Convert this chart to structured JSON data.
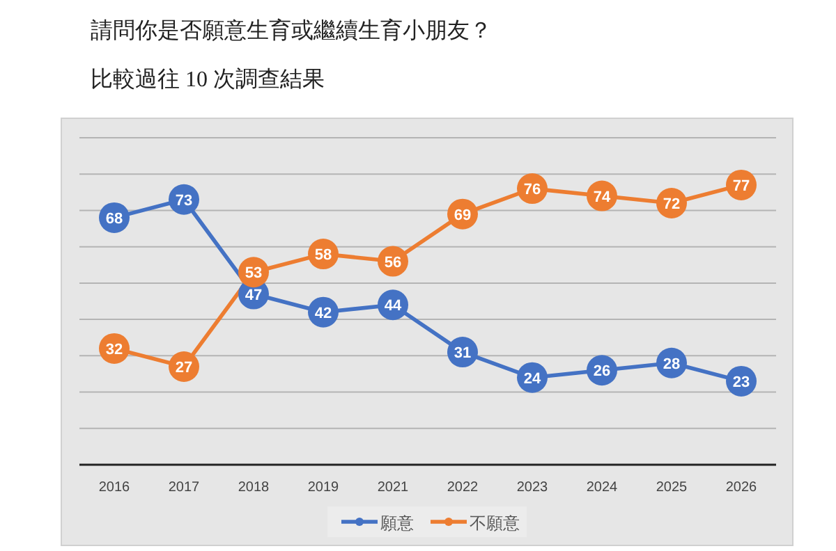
{
  "chart_data": {
    "type": "line",
    "title": "請問你是否願意生育或繼續生育小朋友？",
    "subtitle": "比較過往 10 次調查結果",
    "categories": [
      "2016",
      "2017",
      "2018",
      "2019",
      "2021",
      "2022",
      "2023",
      "2024",
      "2025",
      "2026"
    ],
    "series": [
      {
        "name": "願意",
        "color": "#4472c4",
        "values": [
          68,
          73,
          47,
          42,
          44,
          31,
          24,
          26,
          28,
          23
        ]
      },
      {
        "name": "不願意",
        "color": "#ed7d31",
        "values": [
          32,
          27,
          53,
          58,
          56,
          69,
          76,
          74,
          72,
          77
        ]
      }
    ],
    "ylim": [
      0,
      90
    ],
    "yticks": [
      {
        "value": 0,
        "label": null
      },
      {
        "value": 10,
        "label": null
      },
      {
        "value": 20,
        "label": null
      },
      {
        "value": 30,
        "label": null
      },
      {
        "value": 40,
        "label": null
      },
      {
        "value": 50,
        "label": null
      },
      {
        "value": 60,
        "label": null
      },
      {
        "value": 70,
        "label": null
      },
      {
        "value": 80,
        "label": null
      },
      {
        "value": 90,
        "label": null
      }
    ],
    "tick_labels": "x",
    "grid": "y",
    "legend": "bottom",
    "marker": "circle",
    "data_labels": true
  }
}
